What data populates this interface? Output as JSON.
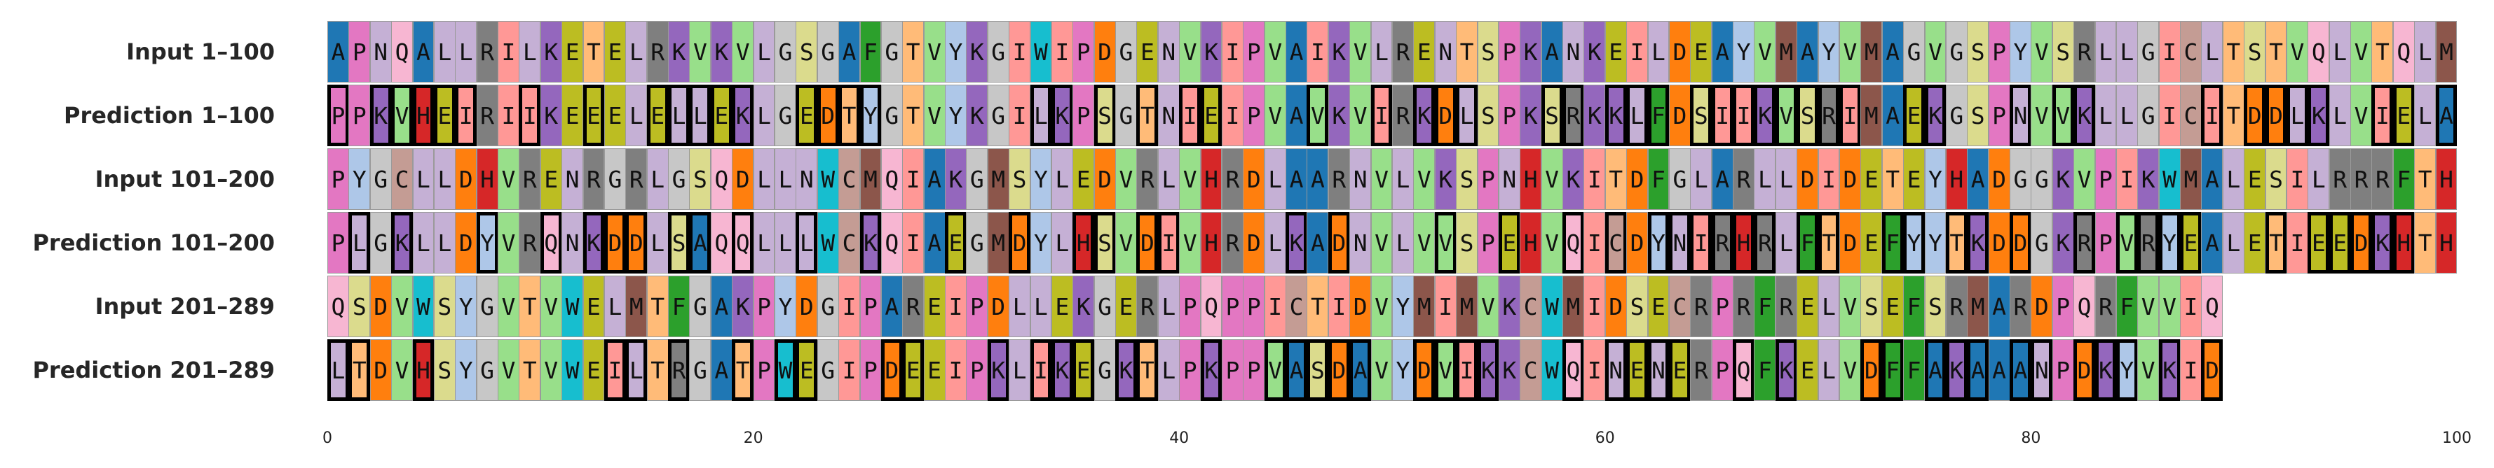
{
  "rows": [
    {
      "label": "Input 1–100",
      "seq": "APNQALLRILKETELRKVKVLGSGAFGTVYKGIWIPDGENVKIPVAIKVLRENTSPKANKEILDEAYVMAYVMAGVGSPYVSRLLGICLTSTVQLVTQLM",
      "mismatch_ref": null
    },
    {
      "label": "Prediction 1–100",
      "seq": "PPKVHEIRIIKEEELELLEKLGEDTYGTVYKGILKPSGTNIEIPVAVKVIRKDLSPKSRKKLFDSIIKVSRIMAEKGSPNVVKLLGICITDDLKLVIELA",
      "mismatch_ref": 0
    },
    {
      "label": "Input 101–200",
      "seq": "PYGCLLDHVRENRGRLGSQDLLNWCMQIAKGMSYLEDVRLVHRDLAARNVLVKSPNHVKITDFGLARLLDIDETEYHADGGKVPIKWMALESILRRRFTH",
      "mismatch_ref": null
    },
    {
      "label": "Prediction 101–200",
      "seq": "PLGKLLDYVRQNKDDLSAQQLLLWCKQIAEGMDYLHSVDIVHRDLKADNVLVVSPEHVQICDYNIRHRLFTDEFYYTKDDGKRPVRYEALETIEEDKHTH",
      "mismatch_ref": 2
    },
    {
      "label": "Input 201–289",
      "seq": "QSDVWSYGVTVWELMTFGAKPYDGIPAREIPDLLEKGERLPQPPICTIDVYMIMVKCWMIDSECRPRFRELVSEFSRMARDPQRFVVIQ",
      "mismatch_ref": null
    },
    {
      "label": "Prediction 201–289",
      "seq": "LTDVHSYGVTVWEILTRGATPWEGIPDEEIPKLIKEGKTLPKPPVASDAVYDVIKKCWQINENERPQFKELVDFFAKAAANPDKYVKID",
      "mismatch_ref": 4
    }
  ],
  "x_axis": {
    "ticks": [
      0,
      20,
      40,
      60,
      80,
      100
    ],
    "min": 0,
    "max": 100
  },
  "colors": {
    "A": "#1f77b4",
    "P": "#e377c2",
    "N": "#c5b0d5",
    "Q": "#f7b6d2",
    "L": "#c5b0d5",
    "R": "#7f7f7f",
    "I": "#ff9896",
    "K": "#9467bd",
    "E": "#bcbd22",
    "T": "#ffbb78",
    "V": "#98df8a",
    "G": "#c7c7c7",
    "S": "#dbdb8d",
    "F": "#2ca02c",
    "Y": "#aec7e8",
    "W": "#17becf",
    "D": "#ff7f0e",
    "M": "#8c564b",
    "C": "#c49c94",
    "H": "#d62728"
  },
  "mismatch_border": "#000000"
}
